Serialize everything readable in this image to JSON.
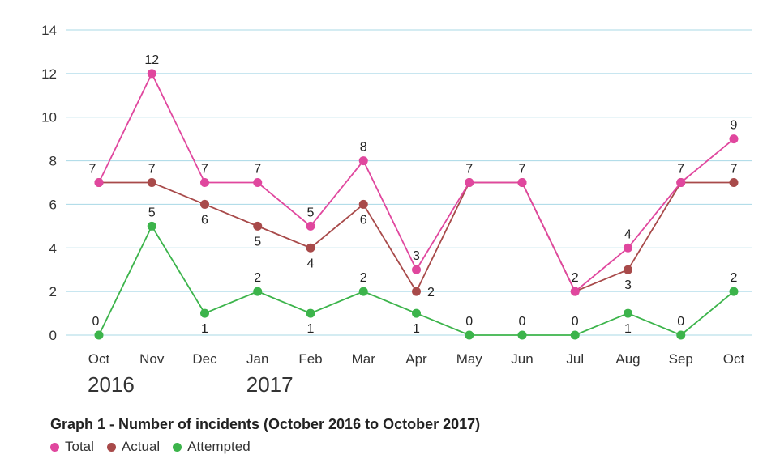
{
  "chart_data": {
    "type": "line",
    "title": "Graph 1 - Number of incidents (October 2016 to October 2017)",
    "categories": [
      "Oct",
      "Nov",
      "Dec",
      "Jan",
      "Feb",
      "Mar",
      "Apr",
      "May",
      "Jun",
      "Jul",
      "Aug",
      "Sep",
      "Oct"
    ],
    "year_labels": [
      "2016",
      "2017"
    ],
    "y_ticks": [
      "0",
      "2",
      "4",
      "6",
      "8",
      "10",
      "12",
      "14"
    ],
    "ylim": [
      0,
      14
    ],
    "grid": true,
    "legend_position": "bottom-left",
    "series": [
      {
        "name": "Total",
        "color": "#e0479e",
        "values": [
          7,
          12,
          7,
          7,
          5,
          8,
          3,
          7,
          7,
          2,
          4,
          7,
          9
        ]
      },
      {
        "name": "Actual",
        "color": "#a84a4a",
        "values": [
          7,
          7,
          6,
          5,
          4,
          6,
          2,
          7,
          7,
          2,
          3,
          7,
          7
        ]
      },
      {
        "name": "Attempted",
        "color": "#3cb44b",
        "values": [
          0,
          5,
          1,
          2,
          1,
          2,
          1,
          0,
          0,
          0,
          1,
          0,
          2
        ]
      }
    ]
  }
}
